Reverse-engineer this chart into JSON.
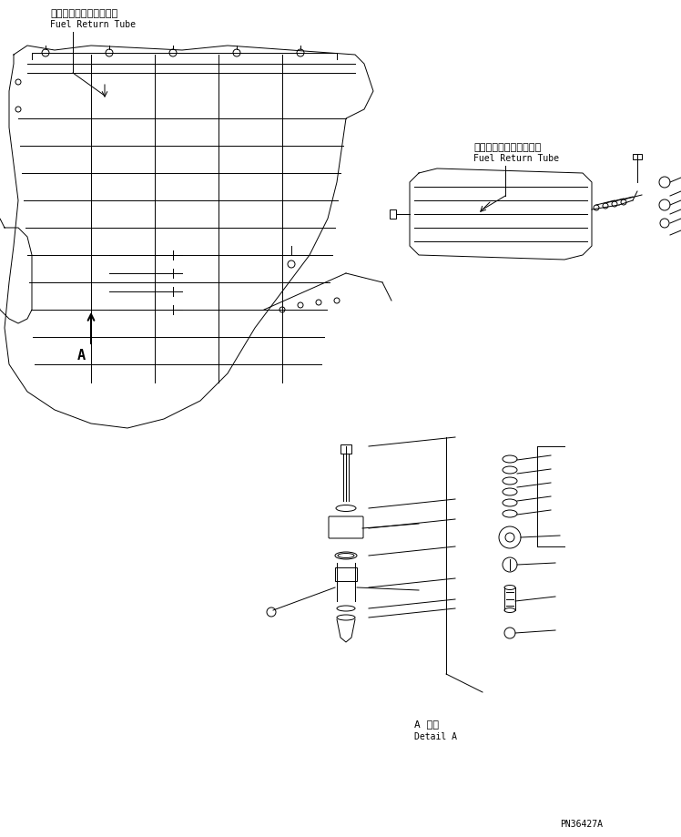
{
  "bg_color": "#ffffff",
  "line_color": "#000000",
  "fig_width": 7.48,
  "fig_height": 9.19,
  "label_top_left_jp": "フェルリターンチューブ",
  "label_top_left_en": "Fuel Return Tube",
  "label_top_right_jp": "フェルリターンチューブ",
  "label_top_right_en": "Fuel Return Tube",
  "label_detail_jp": "A 詳細",
  "label_detail_en": "Detail A",
  "label_A": "A",
  "pn": "PN36427A",
  "font_size_small": 7,
  "font_size_medium": 8,
  "font_size_large": 9
}
